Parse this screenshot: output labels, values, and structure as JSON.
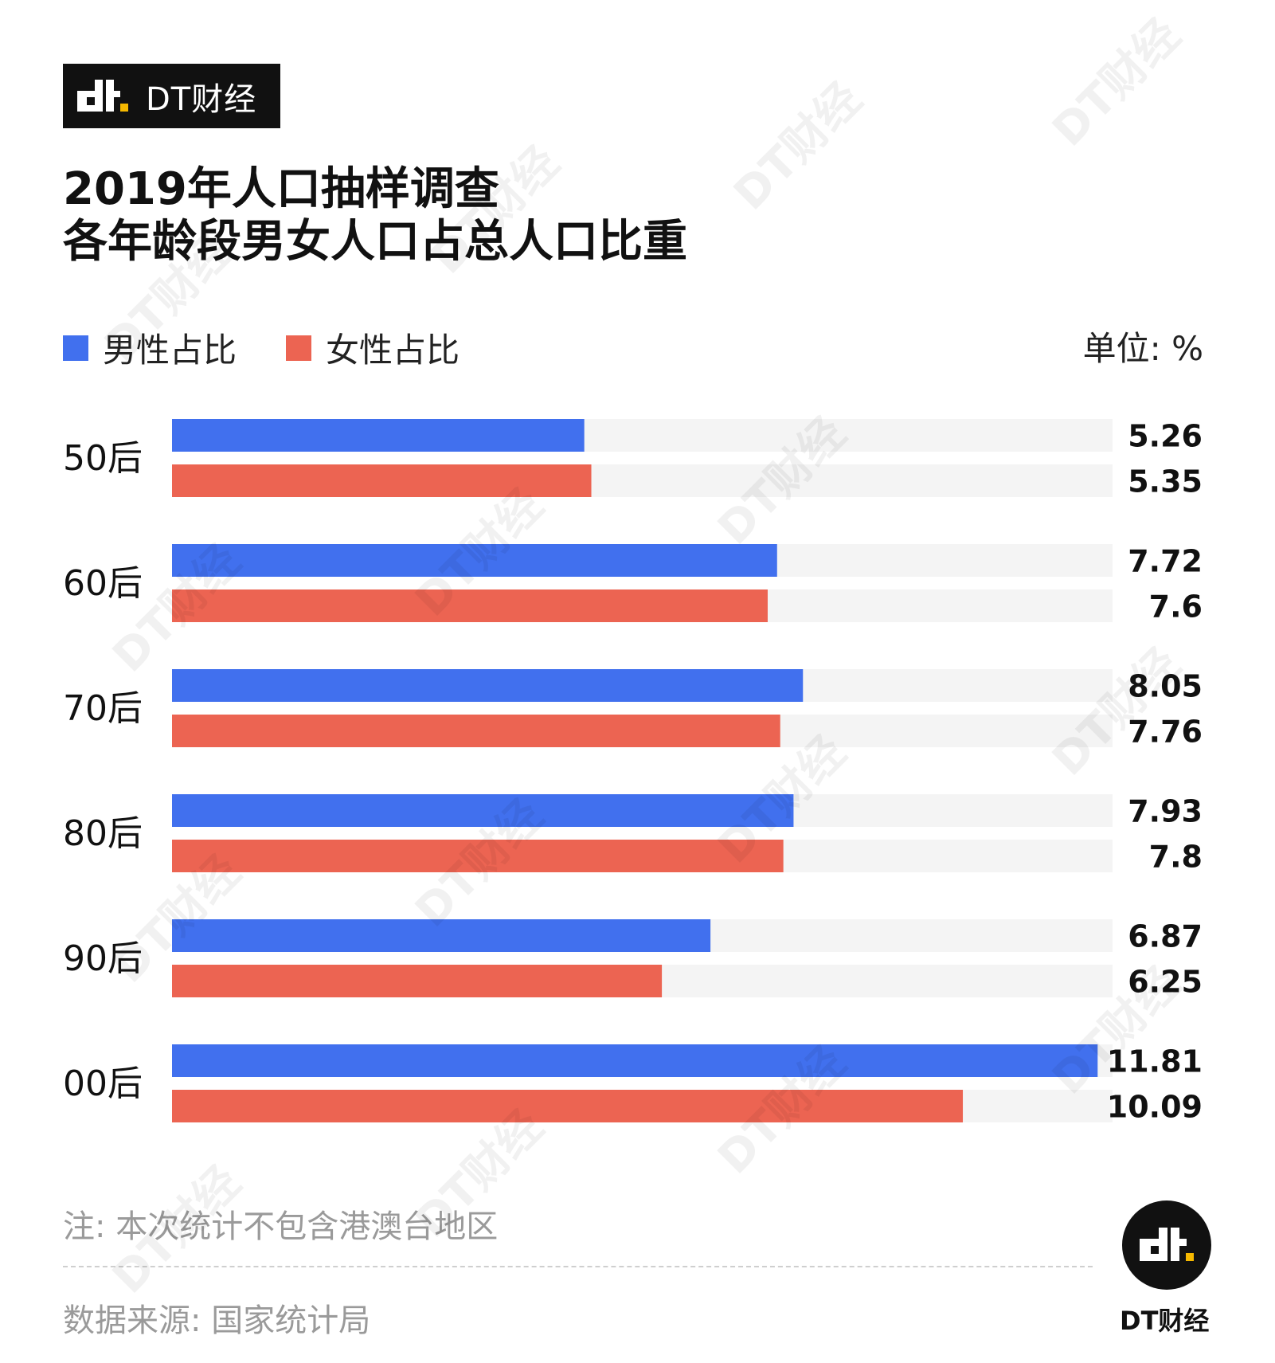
{
  "brand": {
    "name": "DT财经"
  },
  "title_lines": [
    "2019年人口抽样调查",
    "各年龄段男女人口占总人口比重"
  ],
  "legend": {
    "male": "男性占比",
    "female": "女性占比"
  },
  "unit": "单位: %",
  "note": "注: 本次统计不包含港澳台地区",
  "source": "数据来源: 国家统计局",
  "logo_caption": "DT财经",
  "colors": {
    "male": "#4170EE",
    "female": "#EC6452",
    "track": "#F4F4F4"
  },
  "chart_data": {
    "type": "bar",
    "orientation": "horizontal",
    "categories": [
      "50后",
      "60后",
      "70后",
      "80后",
      "90后",
      "00后"
    ],
    "series": [
      {
        "name": "男性占比",
        "values": [
          5.26,
          7.72,
          8.05,
          7.93,
          6.87,
          11.81
        ]
      },
      {
        "name": "女性占比",
        "values": [
          5.35,
          7.6,
          7.76,
          7.8,
          6.25,
          10.09
        ]
      }
    ],
    "value_labels": [
      [
        "5.26",
        "7.72",
        "8.05",
        "7.93",
        "6.87",
        "11.81"
      ],
      [
        "5.35",
        "7.6",
        "7.76",
        "7.8",
        "6.25",
        "10.09"
      ]
    ],
    "xlim": [
      0,
      12
    ],
    "unit": "%",
    "legend_position": "top-left"
  }
}
